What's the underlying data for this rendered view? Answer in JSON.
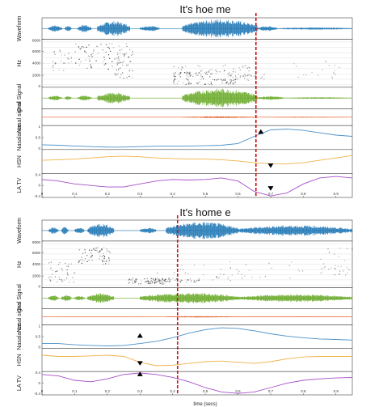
{
  "chart_data": [
    {
      "type": "line",
      "title": "It's hoe me",
      "xlabel": "",
      "xlim": [
        0,
        0.95
      ],
      "x_ticks": [
        "0",
        "0.1",
        "0.2",
        "0.3",
        "0.4",
        "0.5",
        "0.6",
        "0.7",
        "0.8",
        "0.9"
      ],
      "cursor_time": 0.655,
      "rows": [
        {
          "label": "Waveform",
          "kind": "waveform",
          "color": "#1f77b4",
          "ylim": [
            -1,
            1
          ],
          "y_ticks": [],
          "bursts": [
            [
              0.02,
              0.06,
              0.35
            ],
            [
              0.07,
              0.09,
              0.3
            ],
            [
              0.11,
              0.15,
              0.4
            ],
            [
              0.17,
              0.27,
              0.75
            ],
            [
              0.3,
              0.36,
              0.3
            ],
            [
              0.43,
              0.66,
              0.95
            ],
            [
              0.66,
              0.72,
              0.25
            ],
            [
              0.72,
              0.95,
              0.12
            ]
          ]
        },
        {
          "label": "Hz",
          "kind": "spectrogram",
          "ylim": [
            0,
            8000
          ],
          "y_ticks": [
            "0",
            "2000",
            "4000",
            "6000",
            "8000"
          ],
          "blobs": [
            [
              0.18,
              5200,
              0.08,
              2200,
              0.9
            ],
            [
              0.25,
              4000,
              0.03,
              2500,
              0.6
            ],
            [
              0.5,
              1000,
              0.1,
              500,
              0.8
            ],
            [
              0.52,
              3000,
              0.12,
              800,
              0.5
            ],
            [
              0.46,
              2200,
              0.06,
              400,
              0.6
            ],
            [
              0.62,
              1800,
              0.06,
              600,
              0.45
            ],
            [
              0.06,
              4500,
              0.03,
              1800,
              0.3
            ],
            [
              0.85,
              3000,
              0.08,
              1500,
              0.15
            ]
          ]
        },
        {
          "label": "Oral Signal",
          "kind": "waveform",
          "color": "#6aaa2a",
          "ylim": [
            -1,
            1
          ],
          "y_ticks": [],
          "bursts": [
            [
              0.02,
              0.06,
              0.25
            ],
            [
              0.07,
              0.09,
              0.2
            ],
            [
              0.11,
              0.15,
              0.25
            ],
            [
              0.17,
              0.27,
              0.55
            ],
            [
              0.43,
              0.66,
              0.95
            ],
            [
              0.66,
              0.74,
              0.2
            ],
            [
              0.74,
              0.95,
              0.08
            ]
          ]
        },
        {
          "label": "Nasal signal",
          "kind": "waveform",
          "color": "#e0622a",
          "ylim": [
            -1,
            1
          ],
          "y_ticks": [],
          "bursts": [
            [
              0.0,
              0.4,
              0.02
            ],
            [
              0.43,
              0.66,
              0.12
            ],
            [
              0.66,
              0.95,
              0.06
            ]
          ]
        },
        {
          "label": "Nasalance",
          "kind": "line",
          "color": "#4a90c8",
          "ylim": [
            0,
            1
          ],
          "y_ticks": [
            "0",
            "0.5",
            "1"
          ],
          "x": [
            0,
            0.05,
            0.1,
            0.15,
            0.2,
            0.25,
            0.3,
            0.35,
            0.4,
            0.45,
            0.5,
            0.55,
            0.6,
            0.65,
            0.7,
            0.75,
            0.8,
            0.85,
            0.9,
            0.95
          ],
          "y": [
            0.2,
            0.18,
            0.15,
            0.12,
            0.1,
            0.1,
            0.12,
            0.14,
            0.15,
            0.15,
            0.16,
            0.18,
            0.25,
            0.55,
            0.82,
            0.85,
            0.8,
            0.7,
            0.6,
            0.55
          ],
          "marker": {
            "x": 0.67,
            "y": 0.75,
            "dir": "up"
          }
        },
        {
          "label": "HSN",
          "kind": "line",
          "color": "#f0b24a",
          "ylim": [
            -1,
            1
          ],
          "y_ticks": [],
          "x": [
            0,
            0.05,
            0.1,
            0.15,
            0.2,
            0.25,
            0.3,
            0.35,
            0.4,
            0.45,
            0.5,
            0.55,
            0.6,
            0.65,
            0.7,
            0.75,
            0.8,
            0.85,
            0.9,
            0.95
          ],
          "y": [
            0.1,
            0.15,
            0.2,
            0.3,
            0.4,
            0.45,
            0.4,
            0.3,
            0.25,
            0.2,
            0.2,
            0.15,
            0.05,
            -0.1,
            -0.2,
            -0.2,
            -0.1,
            0.1,
            0.3,
            0.5
          ],
          "marker": {
            "x": 0.7,
            "y": -0.35,
            "dir": "down"
          }
        },
        {
          "label": "LA TV",
          "kind": "line",
          "color": "#a64fc8",
          "ylim": [
            -0.4,
            0.4
          ],
          "y_ticks": [
            "-0.4",
            "0",
            "0.4"
          ],
          "x": [
            0,
            0.05,
            0.1,
            0.15,
            0.2,
            0.25,
            0.3,
            0.35,
            0.4,
            0.45,
            0.5,
            0.55,
            0.6,
            0.65,
            0.7,
            0.75,
            0.8,
            0.85,
            0.9,
            0.95
          ],
          "y": [
            0.2,
            0.15,
            0.05,
            0.0,
            -0.05,
            -0.05,
            0.05,
            0.15,
            0.2,
            0.18,
            0.2,
            0.25,
            0.15,
            -0.2,
            -0.35,
            -0.25,
            0.05,
            0.25,
            0.3,
            0.25
          ],
          "marker": {
            "x": 0.7,
            "y": -0.1,
            "dir": "down"
          }
        }
      ]
    },
    {
      "type": "line",
      "title": "It's home e",
      "xlabel": "time (secs)",
      "xlim": [
        0,
        0.95
      ],
      "x_ticks": [
        "0",
        "0.1",
        "0.2",
        "0.3",
        "0.4",
        "0.5",
        "0.6",
        "0.7",
        "0.8",
        "0.9"
      ],
      "cursor_time": 0.415,
      "rows": [
        {
          "label": "Waveform",
          "kind": "waveform",
          "color": "#1f77b4",
          "ylim": [
            -1,
            1
          ],
          "y_ticks": [],
          "bursts": [
            [
              0.02,
              0.05,
              0.35
            ],
            [
              0.06,
              0.08,
              0.4
            ],
            [
              0.1,
              0.13,
              0.3
            ],
            [
              0.14,
              0.22,
              0.75
            ],
            [
              0.3,
              0.35,
              0.3
            ],
            [
              0.38,
              0.6,
              0.9
            ],
            [
              0.6,
              0.95,
              0.55
            ]
          ]
        },
        {
          "label": "Hz",
          "kind": "spectrogram",
          "ylim": [
            0,
            8000
          ],
          "y_ticks": [
            "0",
            "2000",
            "4000",
            "6000",
            "8000"
          ],
          "blobs": [
            [
              0.16,
              5600,
              0.05,
              1500,
              0.9
            ],
            [
              0.06,
              2800,
              0.04,
              1800,
              0.5
            ],
            [
              0.32,
              1200,
              0.06,
              500,
              0.8
            ],
            [
              0.4,
              1400,
              0.08,
              400,
              0.6
            ],
            [
              0.5,
              2500,
              0.15,
              1500,
              0.35
            ],
            [
              0.75,
              3000,
              0.2,
              1500,
              0.3
            ],
            [
              0.9,
              4500,
              0.05,
              2500,
              0.25
            ]
          ]
        },
        {
          "label": "Oral Signal",
          "kind": "waveform",
          "color": "#6aaa2a",
          "ylim": [
            -1,
            1
          ],
          "y_ticks": [],
          "bursts": [
            [
              0.02,
              0.05,
              0.3
            ],
            [
              0.06,
              0.09,
              0.35
            ],
            [
              0.1,
              0.13,
              0.25
            ],
            [
              0.14,
              0.22,
              0.5
            ],
            [
              0.3,
              0.6,
              0.55
            ],
            [
              0.6,
              0.95,
              0.4
            ]
          ]
        },
        {
          "label": "Nasal signal",
          "kind": "waveform",
          "color": "#e0622a",
          "ylim": [
            -1,
            1
          ],
          "y_ticks": [],
          "bursts": [
            [
              0.0,
              0.35,
              0.02
            ],
            [
              0.38,
              0.6,
              0.1
            ],
            [
              0.6,
              0.95,
              0.05
            ]
          ]
        },
        {
          "label": "Nasalance",
          "kind": "line",
          "color": "#4a90c8",
          "ylim": [
            0,
            1
          ],
          "y_ticks": [
            "0",
            "0.5",
            "1"
          ],
          "x": [
            0,
            0.05,
            0.1,
            0.15,
            0.2,
            0.25,
            0.3,
            0.35,
            0.4,
            0.45,
            0.5,
            0.55,
            0.6,
            0.65,
            0.7,
            0.75,
            0.8,
            0.85,
            0.9,
            0.95
          ],
          "y": [
            0.2,
            0.2,
            0.15,
            0.12,
            0.1,
            0.12,
            0.2,
            0.3,
            0.45,
            0.65,
            0.8,
            0.88,
            0.85,
            0.75,
            0.62,
            0.52,
            0.45,
            0.4,
            0.38,
            0.35
          ],
          "marker": {
            "x": 0.3,
            "y": 0.55,
            "dir": "up"
          }
        },
        {
          "label": "HSN",
          "kind": "line",
          "color": "#f0b24a",
          "ylim": [
            -1,
            1
          ],
          "y_ticks": [],
          "x": [
            0,
            0.05,
            0.1,
            0.15,
            0.2,
            0.25,
            0.3,
            0.35,
            0.4,
            0.45,
            0.5,
            0.55,
            0.6,
            0.65,
            0.7,
            0.75,
            0.8,
            0.85,
            0.9,
            0.95
          ],
          "y": [
            0.4,
            0.3,
            0.3,
            0.35,
            0.4,
            0.3,
            -0.2,
            -0.5,
            -0.45,
            -0.3,
            -0.15,
            -0.1,
            -0.2,
            -0.3,
            -0.15,
            0.1,
            0.25,
            0.3,
            0.3,
            0.3
          ],
          "marker": {
            "x": 0.3,
            "y": -0.3,
            "dir": "down"
          }
        },
        {
          "label": "LA TV",
          "kind": "line",
          "color": "#a64fc8",
          "ylim": [
            -0.4,
            0.4
          ],
          "y_ticks": [
            "-0.4",
            "0",
            "0.4"
          ],
          "x": [
            0,
            0.05,
            0.1,
            0.15,
            0.2,
            0.25,
            0.3,
            0.35,
            0.4,
            0.45,
            0.5,
            0.55,
            0.6,
            0.65,
            0.7,
            0.75,
            0.8,
            0.85,
            0.9,
            0.95
          ],
          "y": [
            0.3,
            0.25,
            0.1,
            0.05,
            0.15,
            0.3,
            0.35,
            0.3,
            0.2,
            0.05,
            -0.15,
            -0.3,
            -0.35,
            -0.3,
            -0.15,
            0.0,
            0.1,
            0.15,
            0.18,
            0.2
          ],
          "marker": {
            "x": 0.3,
            "y": 0.32,
            "dir": "up"
          }
        }
      ]
    }
  ]
}
